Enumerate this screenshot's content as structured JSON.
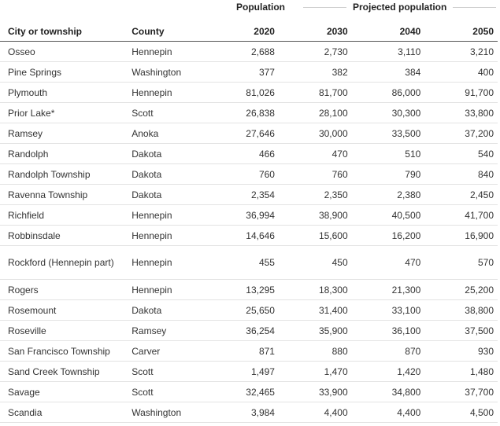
{
  "header": {
    "group_population": "Population",
    "group_projected": "Projected population",
    "col_city": "City or township",
    "col_county": "County",
    "col_2020": "2020",
    "col_2030": "2030",
    "col_2040": "2040",
    "col_2050": "2050"
  },
  "rows": [
    {
      "city": "Osseo",
      "county": "Hennepin",
      "y2020": "2,688",
      "y2030": "2,730",
      "y2040": "3,110",
      "y2050": "3,210"
    },
    {
      "city": "Pine Springs",
      "county": "Washington",
      "y2020": "377",
      "y2030": "382",
      "y2040": "384",
      "y2050": "400"
    },
    {
      "city": "Plymouth",
      "county": "Hennepin",
      "y2020": "81,026",
      "y2030": "81,700",
      "y2040": "86,000",
      "y2050": "91,700"
    },
    {
      "city": "Prior Lake*",
      "county": "Scott",
      "y2020": "26,838",
      "y2030": "28,100",
      "y2040": "30,300",
      "y2050": "33,800"
    },
    {
      "city": "Ramsey",
      "county": "Anoka",
      "y2020": "27,646",
      "y2030": "30,000",
      "y2040": "33,500",
      "y2050": "37,200"
    },
    {
      "city": "Randolph",
      "county": "Dakota",
      "y2020": "466",
      "y2030": "470",
      "y2040": "510",
      "y2050": "540"
    },
    {
      "city": "Randolph Township",
      "county": "Dakota",
      "y2020": "760",
      "y2030": "760",
      "y2040": "790",
      "y2050": "840"
    },
    {
      "city": "Ravenna Township",
      "county": "Dakota",
      "y2020": "2,354",
      "y2030": "2,350",
      "y2040": "2,380",
      "y2050": "2,450"
    },
    {
      "city": "Richfield",
      "county": "Hennepin",
      "y2020": "36,994",
      "y2030": "38,900",
      "y2040": "40,500",
      "y2050": "41,700"
    },
    {
      "city": "Robbinsdale",
      "county": "Hennepin",
      "y2020": "14,646",
      "y2030": "15,600",
      "y2040": "16,200",
      "y2050": "16,900"
    },
    {
      "city": "Rockford (Hennepin part)",
      "county": "Hennepin",
      "y2020": "455",
      "y2030": "450",
      "y2040": "470",
      "y2050": "570"
    },
    {
      "city": "Rogers",
      "county": "Hennepin",
      "y2020": "13,295",
      "y2030": "18,300",
      "y2040": "21,300",
      "y2050": "25,200"
    },
    {
      "city": "Rosemount",
      "county": "Dakota",
      "y2020": "25,650",
      "y2030": "31,400",
      "y2040": "33,100",
      "y2050": "38,800"
    },
    {
      "city": "Roseville",
      "county": "Ramsey",
      "y2020": "36,254",
      "y2030": "35,900",
      "y2040": "36,100",
      "y2050": "37,500"
    },
    {
      "city": "San Francisco Township",
      "county": "Carver",
      "y2020": "871",
      "y2030": "880",
      "y2040": "870",
      "y2050": "930"
    },
    {
      "city": "Sand Creek Township",
      "county": "Scott",
      "y2020": "1,497",
      "y2030": "1,470",
      "y2040": "1,420",
      "y2050": "1,480"
    },
    {
      "city": "Savage",
      "county": "Scott",
      "y2020": "32,465",
      "y2030": "33,900",
      "y2040": "34,800",
      "y2050": "37,700"
    },
    {
      "city": "Scandia",
      "county": "Washington",
      "y2020": "3,984",
      "y2030": "4,400",
      "y2040": "4,400",
      "y2050": "4,500"
    }
  ]
}
